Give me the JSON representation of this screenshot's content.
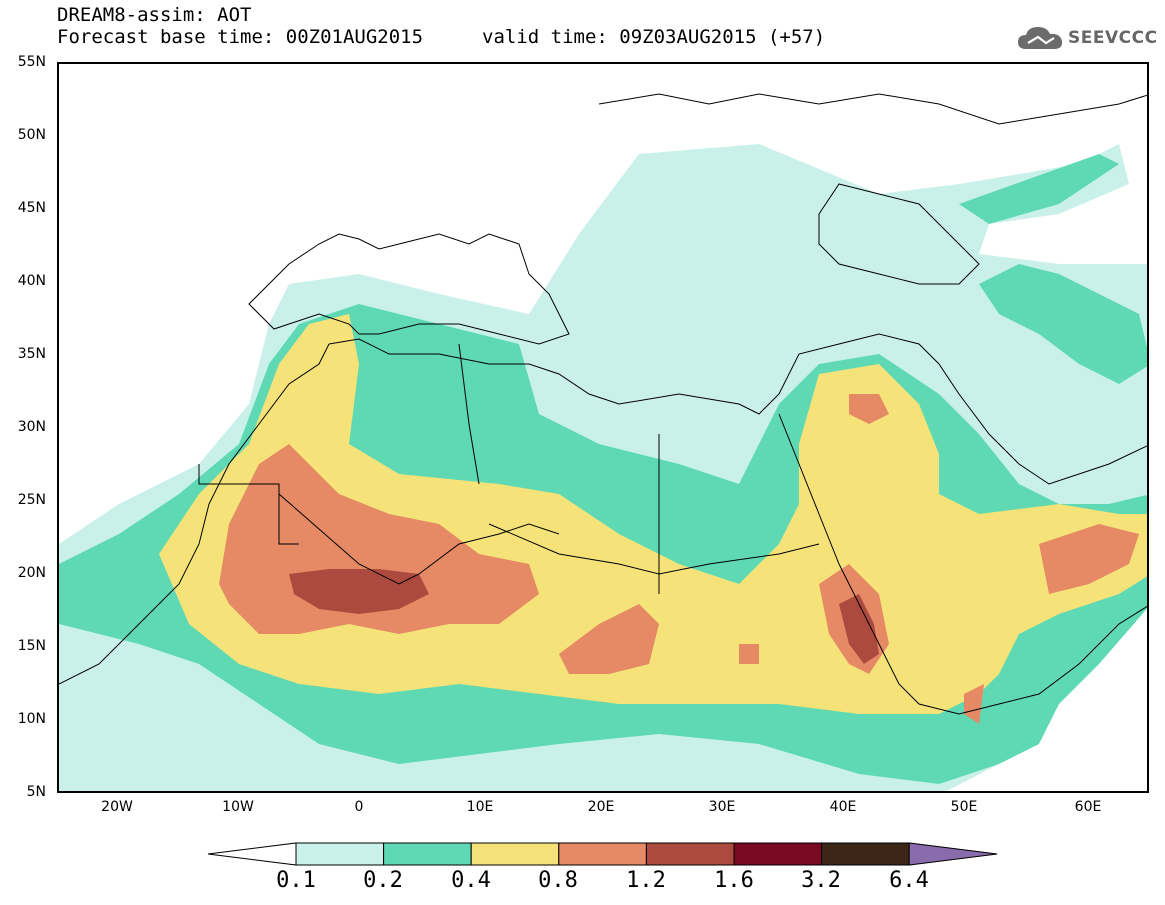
{
  "header": {
    "model_line": "DREAM8-assim: AOT",
    "base_time_line": "Forecast base time: 00Z01AUG2015",
    "valid_time_line": "valid time: 09Z03AUG2015 (+57)",
    "logo_text": "SEEVCCC"
  },
  "axes": {
    "lat_labels": [
      "55N",
      "50N",
      "45N",
      "40N",
      "35N",
      "30N",
      "25N",
      "20N",
      "15N",
      "10N",
      "5N"
    ],
    "lon_labels": [
      "20W",
      "10W",
      "0",
      "10E",
      "20E",
      "30E",
      "40E",
      "50E",
      "60E"
    ]
  },
  "legend": {
    "levels": [
      "0.1",
      "0.2",
      "0.4",
      "0.8",
      "1.2",
      "1.6",
      "3.2",
      "6.4"
    ],
    "colors": [
      "#ffffff",
      "#c9f1ea",
      "#5ed9b4",
      "#f5e37a",
      "#e58a65",
      "#ad4a3f",
      "#7a0a22",
      "#3d2518",
      "#8a6bab"
    ]
  },
  "colors": {
    "land_outline": "#000000",
    "level_0_1": "#c9f1ea",
    "level_0_2": "#5ed9b4",
    "level_0_4": "#f5e37a",
    "level_0_8": "#e58a65",
    "level_1_2": "#ad4a3f"
  }
}
